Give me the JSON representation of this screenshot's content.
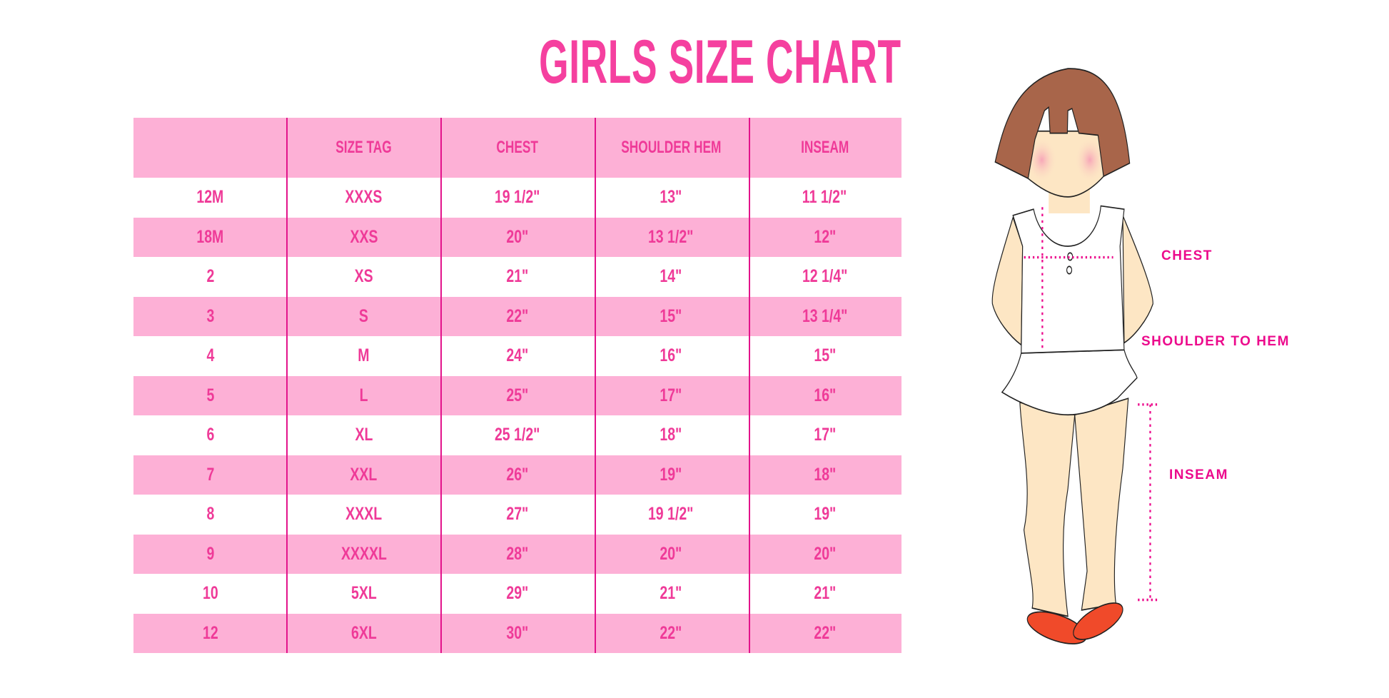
{
  "title": "GIRLS SIZE CHART",
  "colors": {
    "title": "#f5409f",
    "text": "#ef3a98",
    "row_pink": "#fdb0d6",
    "line": "#e3138b",
    "label": "#ec0a8c",
    "hair": "#a8654a",
    "skin": "#fde6c4",
    "shoe": "#f04a2a"
  },
  "table": {
    "columns": [
      "",
      "SIZE TAG",
      "CHEST",
      "SHOULDER HEM",
      "INSEAM"
    ],
    "rows": [
      [
        "12M",
        "XXXS",
        "19 1/2\"",
        "13\"",
        "11 1/2\""
      ],
      [
        "18M",
        "XXS",
        "20\"",
        "13 1/2\"",
        "12\""
      ],
      [
        "2",
        "XS",
        "21\"",
        "14\"",
        "12 1/4\""
      ],
      [
        "3",
        "S",
        "22\"",
        "15\"",
        "13 1/4\""
      ],
      [
        "4",
        "M",
        "24\"",
        "16\"",
        "15\""
      ],
      [
        "5",
        "L",
        "25\"",
        "17\"",
        "16\""
      ],
      [
        "6",
        "XL",
        "25 1/2\"",
        "18\"",
        "17\""
      ],
      [
        "7",
        "XXL",
        "26\"",
        "19\"",
        "18\""
      ],
      [
        "8",
        "XXXL",
        "27\"",
        "19 1/2\"",
        "19\""
      ],
      [
        "9",
        "XXXXL",
        "28\"",
        "20\"",
        "20\""
      ],
      [
        "10",
        "5XL",
        "29\"",
        "21\"",
        "21\""
      ],
      [
        "12",
        "6XL",
        "30\"",
        "22\"",
        "22\""
      ]
    ]
  },
  "figure": {
    "labels": {
      "chest": "CHEST",
      "shoulder": "SHOULDER TO HEM",
      "inseam": "INSEAM"
    }
  }
}
